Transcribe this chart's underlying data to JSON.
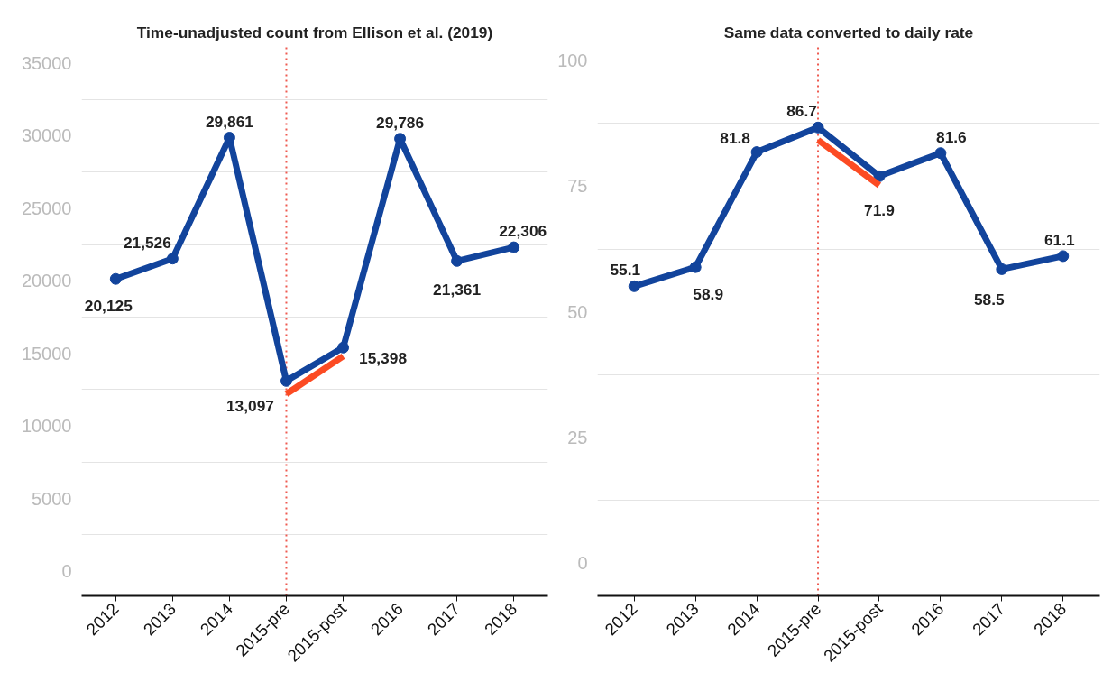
{
  "chart_data": [
    {
      "type": "line",
      "title": "Time-unadjusted count from Ellison et al. (2019)",
      "categories": [
        "2012",
        "2013",
        "2014",
        "2015-pre",
        "2015-post",
        "2016",
        "2017",
        "2018"
      ],
      "series": [
        {
          "color": "#12449c",
          "marker": "circle",
          "values": [
            20125,
            21526,
            29861,
            13097,
            15398,
            29786,
            21361,
            22306
          ],
          "value_labels": [
            "20,125",
            "21,526",
            "29,861",
            "13,097",
            "15,398",
            "29,786",
            "21,361",
            "22,306"
          ]
        },
        {
          "color": "#fc4b23",
          "marker": "none",
          "values": [
            null,
            null,
            null,
            12200,
            14800,
            null,
            null,
            null
          ]
        }
      ],
      "ylim": [
        -1700,
        36200
      ],
      "yticks": [
        0,
        {
          "value": 2500,
          "label": null
        },
        5000,
        {
          "value": 7500,
          "label": null
        },
        10000,
        {
          "value": 12500,
          "label": null
        },
        15000,
        {
          "value": 17500,
          "label": null
        },
        20000,
        {
          "value": 22500,
          "label": null
        },
        25000,
        {
          "value": 27500,
          "label": null
        },
        30000,
        {
          "value": 32500,
          "label": null
        },
        35000
      ],
      "grid": "y",
      "line_style": "solid",
      "ref_lines": [
        {
          "axis": "x",
          "value": "2015-pre",
          "color": "#ee5a50",
          "line_style": "dotted"
        }
      ]
    },
    {
      "type": "line",
      "title": "Same data converted to daily rate",
      "categories": [
        "2012",
        "2013",
        "2014",
        "2015-pre",
        "2015-post",
        "2016",
        "2017",
        "2018"
      ],
      "series": [
        {
          "color": "#12449c",
          "marker": "circle",
          "values": [
            55.1,
            58.9,
            81.8,
            86.7,
            77.0,
            81.6,
            58.5,
            61.1
          ],
          "value_labels": [
            "55.1",
            "58.9",
            "81.8",
            "86.7",
            null,
            "81.6",
            "58.5",
            "61.1"
          ]
        },
        {
          "color": "#fc4b23",
          "marker": "none",
          "values": [
            null,
            null,
            null,
            84.2,
            75.2,
            null,
            null,
            null
          ]
        }
      ],
      "ylim": [
        -6.5,
        103
      ],
      "yticks": [
        0,
        {
          "value": 12.5,
          "label": null
        },
        25,
        {
          "value": 37.5,
          "label": null
        },
        50,
        {
          "value": 62.5,
          "label": null
        },
        75,
        {
          "value": 87.5,
          "label": null
        },
        100
      ],
      "grid": "y",
      "line_style": "solid",
      "annotations": [
        "71.9"
      ],
      "ref_lines": [
        {
          "axis": "x",
          "value": "2015-pre",
          "color": "#ee5a50",
          "line_style": "dotted"
        }
      ]
    }
  ]
}
